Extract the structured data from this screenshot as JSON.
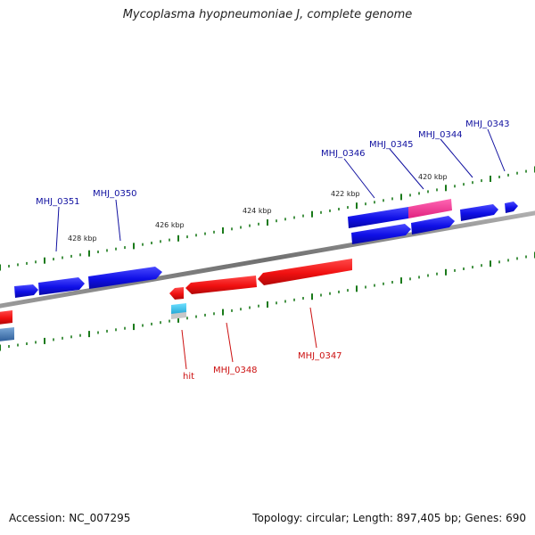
{
  "title": "Mycoplasma hyopneumoniae J, complete genome",
  "footer": {
    "accession": "Accession: NC_007295",
    "summary": "Topology: circular; Length: 897,405 bp; Genes: 690"
  },
  "colors": {
    "backbone": "#7a7a7a",
    "tick": "#1a7a1a",
    "forward_gene": "#1010e6",
    "reverse_gene": "#e61010",
    "highlight_gene": "#ff3399",
    "hit": "#22b5d8",
    "forward_label": "#1010a0",
    "reverse_label": "#cc1010"
  },
  "scale_labels": [
    {
      "text": "428 kbp"
    },
    {
      "text": "426 kbp"
    },
    {
      "text": "424 kbp"
    },
    {
      "text": "422 kbp"
    },
    {
      "text": "420 kbp"
    }
  ],
  "forward_labels": [
    {
      "text": "MHJ_0351"
    },
    {
      "text": "MHJ_0350"
    },
    {
      "text": "MHJ_0346"
    },
    {
      "text": "MHJ_0345"
    },
    {
      "text": "MHJ_0344"
    },
    {
      "text": "MHJ_0343"
    }
  ],
  "reverse_labels": [
    {
      "text": "hit"
    },
    {
      "text": "MHJ_0348"
    },
    {
      "text": "MHJ_0347"
    }
  ]
}
